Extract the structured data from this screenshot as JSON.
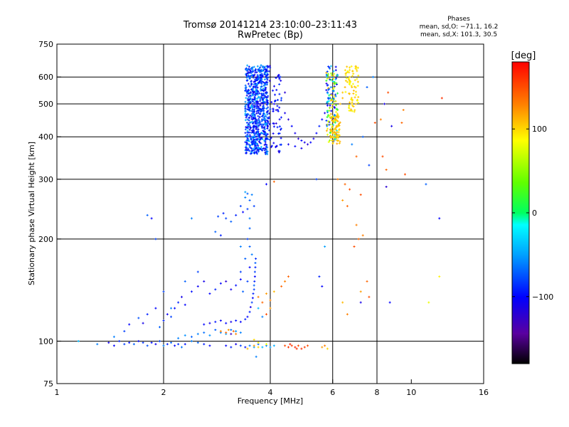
{
  "title_line1": "Tromsø 20141214 23:10:00–23:11:43",
  "title_line2": "RwPretec (Bp)",
  "phases": {
    "heading": "Phases",
    "o_line": "mean, sd,O: −71.1, 16.2",
    "x_line": "mean, sd,X: 101.3, 30.5"
  },
  "colorbar": {
    "label": "[deg]",
    "ticks": [
      {
        "v": 100,
        "label": "100"
      },
      {
        "v": 0,
        "label": "0"
      },
      {
        "v": -100,
        "label": "−100"
      }
    ],
    "range": [
      -180,
      180
    ]
  },
  "chart_data": {
    "type": "scatter",
    "title": "Tromsø 20141214 23:10:00–23:11:43",
    "subtitle": "RwPretec (Bp)",
    "xlabel": "Frequency [MHz]",
    "ylabel": "Stationary phase Virtual Height [km]",
    "xscale": "log",
    "yscale": "log",
    "xlim": [
      1,
      16
    ],
    "ylim": [
      75,
      750
    ],
    "xticks": [
      {
        "v": 1,
        "label": "1"
      },
      {
        "v": 2,
        "label": "2"
      },
      {
        "v": 4,
        "label": "4"
      },
      {
        "v": 6,
        "label": "6"
      },
      {
        "v": 8,
        "label": "8"
      },
      {
        "v": 10,
        "label": "10"
      },
      {
        "v": 16,
        "label": "16"
      }
    ],
    "yticks": [
      {
        "v": 75,
        "label": "75"
      },
      {
        "v": 100,
        "label": "100"
      },
      {
        "v": 200,
        "label": "200"
      },
      {
        "v": 300,
        "label": "300"
      },
      {
        "v": 400,
        "label": "400"
      },
      {
        "v": 500,
        "label": "500"
      },
      {
        "v": 600,
        "label": "600"
      },
      {
        "v": 750,
        "label": "750"
      }
    ],
    "xgrid": [
      2,
      4,
      6,
      8
    ],
    "ygrid": [
      100,
      200,
      300,
      400,
      500,
      600
    ],
    "color_variable": "phase [deg]",
    "points": [
      [
        1.15,
        100,
        -40
      ],
      [
        1.3,
        98,
        -60
      ],
      [
        1.4,
        99,
        -110
      ],
      [
        1.45,
        97,
        -100
      ],
      [
        1.5,
        100,
        -90
      ],
      [
        1.55,
        98,
        -80
      ],
      [
        1.6,
        99,
        -95
      ],
      [
        1.65,
        98,
        -70
      ],
      [
        1.7,
        100,
        -100
      ],
      [
        1.75,
        99,
        -85
      ],
      [
        1.8,
        97,
        -75
      ],
      [
        1.85,
        99,
        -95
      ],
      [
        1.9,
        98,
        -105
      ],
      [
        1.95,
        100,
        -80
      ],
      [
        2.0,
        97,
        -60
      ],
      [
        2.05,
        98,
        -90
      ],
      [
        2.1,
        99,
        -70
      ],
      [
        2.15,
        97,
        -100
      ],
      [
        2.2,
        98,
        -85
      ],
      [
        2.25,
        96,
        -65
      ],
      [
        2.3,
        98,
        -95
      ],
      [
        2.4,
        100,
        -60
      ],
      [
        2.5,
        99,
        -70
      ],
      [
        2.6,
        98,
        -90
      ],
      [
        2.7,
        97,
        -100
      ],
      [
        1.45,
        103,
        -60
      ],
      [
        1.55,
        107,
        -80
      ],
      [
        1.6,
        112,
        -100
      ],
      [
        1.7,
        117,
        -75
      ],
      [
        1.75,
        113,
        -110
      ],
      [
        1.8,
        120,
        -90
      ],
      [
        1.9,
        125,
        -100
      ],
      [
        1.95,
        110,
        -70
      ],
      [
        2.0,
        115,
        -90
      ],
      [
        2.05,
        120,
        -105
      ],
      [
        2.1,
        118,
        -80
      ],
      [
        2.15,
        125,
        -100
      ],
      [
        2.2,
        130,
        -90
      ],
      [
        2.25,
        135,
        -110
      ],
      [
        2.3,
        128,
        -100
      ],
      [
        2.4,
        140,
        -95
      ],
      [
        2.5,
        145,
        -105
      ],
      [
        2.6,
        150,
        -110
      ],
      [
        2.7,
        138,
        -100
      ],
      [
        2.8,
        142,
        -90
      ],
      [
        2.9,
        148,
        -100
      ],
      [
        3.0,
        150,
        -120
      ],
      [
        3.1,
        142,
        -110
      ],
      [
        3.2,
        146,
        -95
      ],
      [
        3.3,
        152,
        -100
      ],
      [
        2.2,
        102,
        -60
      ],
      [
        2.3,
        104,
        -55
      ],
      [
        2.4,
        103,
        -70
      ],
      [
        2.5,
        105,
        -60
      ],
      [
        2.6,
        106,
        -65
      ],
      [
        2.7,
        104,
        -55
      ],
      [
        2.8,
        108,
        -70
      ],
      [
        2.9,
        106,
        -60
      ],
      [
        3.0,
        105,
        -50
      ],
      [
        3.1,
        108,
        -65
      ],
      [
        3.2,
        107,
        -55
      ],
      [
        3.3,
        106,
        -60
      ],
      [
        2.6,
        112,
        -100
      ],
      [
        2.7,
        113,
        -110
      ],
      [
        2.8,
        114,
        -95
      ],
      [
        2.9,
        115,
        -105
      ],
      [
        3.0,
        113,
        -100
      ],
      [
        3.1,
        114,
        -110
      ],
      [
        3.2,
        115,
        -95
      ],
      [
        3.3,
        114,
        -100
      ],
      [
        3.4,
        116,
        -90
      ],
      [
        2.9,
        107,
        130
      ],
      [
        3.0,
        106,
        140
      ],
      [
        3.05,
        108,
        120
      ],
      [
        3.1,
        105,
        -130
      ],
      [
        3.15,
        107,
        140
      ],
      [
        3.2,
        105,
        130
      ],
      [
        3.0,
        97,
        -100
      ],
      [
        3.1,
        96,
        -90
      ],
      [
        3.2,
        98,
        -110
      ],
      [
        3.3,
        97,
        -80
      ],
      [
        3.4,
        96,
        -95
      ],
      [
        3.5,
        97,
        -60
      ],
      [
        3.6,
        96,
        -50
      ],
      [
        3.7,
        98,
        -70
      ],
      [
        3.8,
        96,
        -40
      ],
      [
        3.9,
        97,
        -60
      ],
      [
        4.0,
        96,
        -50
      ],
      [
        4.1,
        97,
        -45
      ],
      [
        3.45,
        95,
        110
      ],
      [
        3.6,
        97,
        120
      ],
      [
        3.7,
        96,
        100
      ],
      [
        3.65,
        90,
        -60
      ],
      [
        3.45,
        118,
        -100
      ],
      [
        3.5,
        122,
        -90
      ],
      [
        3.52,
        126,
        -110
      ],
      [
        3.55,
        130,
        -80
      ],
      [
        3.57,
        134,
        -100
      ],
      [
        3.58,
        138,
        -90
      ],
      [
        3.6,
        142,
        -80
      ],
      [
        3.6,
        146,
        -70
      ],
      [
        3.61,
        150,
        -90
      ],
      [
        3.62,
        155,
        -100
      ],
      [
        3.62,
        160,
        -80
      ],
      [
        3.63,
        165,
        -90
      ],
      [
        3.63,
        170,
        -70
      ],
      [
        3.64,
        175,
        -85
      ],
      [
        3.5,
        165,
        -100
      ],
      [
        3.45,
        150,
        -80
      ],
      [
        3.55,
        180,
        -60
      ],
      [
        3.5,
        190,
        -70
      ],
      [
        3.45,
        200,
        -80
      ],
      [
        3.5,
        215,
        -70
      ],
      [
        3.5,
        230,
        -60
      ],
      [
        3.45,
        245,
        -80
      ],
      [
        3.5,
        260,
        -70
      ],
      [
        3.4,
        265,
        -60
      ],
      [
        3.3,
        250,
        -80
      ],
      [
        3.35,
        240,
        -100
      ],
      [
        3.2,
        235,
        -90
      ],
      [
        3.1,
        225,
        -70
      ],
      [
        3.0,
        230,
        -80
      ],
      [
        2.95,
        238,
        -90
      ],
      [
        2.85,
        233,
        -80
      ],
      [
        3.55,
        270,
        -60
      ],
      [
        3.45,
        272,
        -70
      ],
      [
        3.4,
        275,
        -50
      ],
      [
        3.6,
        250,
        -80
      ],
      [
        3.3,
        190,
        -60
      ],
      [
        3.4,
        175,
        -70
      ],
      [
        3.3,
        160,
        -80
      ],
      [
        3.35,
        140,
        -70
      ],
      [
        1.8,
        235,
        -70
      ],
      [
        1.85,
        230,
        -100
      ],
      [
        1.9,
        200,
        -80
      ],
      [
        2.4,
        230,
        -60
      ],
      [
        2.8,
        210,
        -70
      ],
      [
        2.9,
        205,
        -90
      ],
      [
        2.0,
        140,
        -80
      ],
      [
        2.1,
        125,
        -60
      ],
      [
        2.3,
        150,
        -70
      ],
      [
        2.5,
        160,
        -80
      ],
      [
        3.7,
        135,
        130
      ],
      [
        3.8,
        130,
        140
      ],
      [
        3.9,
        138,
        120
      ],
      [
        4.0,
        132,
        130
      ],
      [
        4.1,
        140,
        110
      ],
      [
        4.3,
        145,
        140
      ],
      [
        4.4,
        150,
        130
      ],
      [
        4.5,
        155,
        140
      ],
      [
        4.0,
        125,
        120
      ],
      [
        3.9,
        120,
        150
      ],
      [
        3.8,
        118,
        -60
      ],
      [
        3.7,
        125,
        -40
      ],
      [
        4.4,
        97,
        150
      ],
      [
        4.5,
        96,
        160
      ],
      [
        4.6,
        97,
        155
      ],
      [
        4.7,
        96,
        165
      ],
      [
        4.8,
        97,
        150
      ],
      [
        4.9,
        95,
        160
      ],
      [
        5.0,
        96,
        155
      ],
      [
        5.1,
        97,
        150
      ],
      [
        4.55,
        98,
        165
      ],
      [
        4.75,
        95,
        160
      ],
      [
        5.6,
        96,
        120
      ],
      [
        5.7,
        97,
        130
      ],
      [
        5.8,
        95,
        100
      ],
      [
        3.9,
        98,
        80
      ],
      [
        3.7,
        99,
        90
      ],
      [
        3.6,
        101,
        100
      ],
      [
        4.1,
        500,
        -110
      ],
      [
        4.2,
        480,
        -100
      ],
      [
        4.4,
        470,
        -110
      ],
      [
        4.5,
        450,
        -120
      ],
      [
        4.6,
        430,
        -100
      ],
      [
        4.7,
        410,
        -110
      ],
      [
        4.8,
        395,
        -120
      ],
      [
        4.9,
        390,
        -100
      ],
      [
        5.0,
        385,
        -110
      ],
      [
        5.1,
        380,
        -120
      ],
      [
        5.2,
        385,
        -100
      ],
      [
        5.3,
        395,
        -110
      ],
      [
        5.4,
        410,
        -100
      ],
      [
        5.5,
        430,
        -90
      ],
      [
        5.6,
        450,
        -100
      ],
      [
        5.7,
        470,
        -110
      ],
      [
        5.8,
        495,
        -100
      ],
      [
        5.9,
        520,
        -90
      ],
      [
        4.5,
        380,
        -110
      ],
      [
        4.7,
        375,
        -100
      ],
      [
        4.9,
        370,
        -110
      ],
      [
        4.3,
        520,
        -80
      ],
      [
        4.4,
        540,
        -120
      ],
      [
        6.0,
        400,
        100
      ],
      [
        6.05,
        420,
        105
      ],
      [
        6.1,
        440,
        95
      ],
      [
        6.0,
        460,
        110
      ],
      [
        6.05,
        450,
        100
      ],
      [
        5.95,
        420,
        105
      ],
      [
        6.2,
        480,
        100
      ],
      [
        6.3,
        500,
        110
      ],
      [
        6.4,
        540,
        105
      ],
      [
        6.5,
        560,
        110
      ],
      [
        6.6,
        580,
        100
      ],
      [
        6.7,
        600,
        95
      ],
      [
        6.8,
        560,
        110
      ],
      [
        6.7,
        640,
        100
      ],
      [
        6.6,
        620,
        105
      ],
      [
        6.2,
        300,
        130
      ],
      [
        6.5,
        290,
        140
      ],
      [
        6.7,
        280,
        150
      ],
      [
        6.4,
        260,
        120
      ],
      [
        6.6,
        250,
        140
      ],
      [
        7.2,
        270,
        150
      ],
      [
        7.0,
        220,
        130
      ],
      [
        7.1,
        200,
        140
      ],
      [
        6.9,
        190,
        150
      ],
      [
        7.3,
        205,
        130
      ],
      [
        7.5,
        150,
        140
      ],
      [
        7.2,
        140,
        120
      ],
      [
        7.6,
        135,
        150
      ],
      [
        6.4,
        130,
        110
      ],
      [
        6.6,
        120,
        130
      ],
      [
        7.0,
        350,
        140
      ],
      [
        6.8,
        380,
        -60
      ],
      [
        7.3,
        400,
        -70
      ],
      [
        7.6,
        330,
        -80
      ],
      [
        8.3,
        350,
        150
      ],
      [
        8.5,
        320,
        140
      ],
      [
        9.6,
        310,
        150
      ],
      [
        9.4,
        440,
        140
      ],
      [
        9.5,
        480,
        130
      ],
      [
        8.8,
        430,
        -110
      ],
      [
        8.4,
        500,
        -110
      ],
      [
        8.6,
        540,
        150
      ],
      [
        12.2,
        520,
        160
      ],
      [
        12.0,
        230,
        -100
      ],
      [
        11.0,
        290,
        -70
      ],
      [
        11.2,
        130,
        80
      ],
      [
        8.2,
        450,
        130
      ],
      [
        7.9,
        440,
        150
      ],
      [
        5.4,
        300,
        -80
      ],
      [
        5.7,
        190,
        -50
      ],
      [
        5.5,
        155,
        -90
      ],
      [
        5.6,
        145,
        -100
      ],
      [
        8.5,
        285,
        -120
      ],
      [
        8.7,
        130,
        -100
      ],
      [
        7.2,
        130,
        -110
      ],
      [
        3.9,
        290,
        -100
      ],
      [
        4.1,
        295,
        140
      ],
      [
        12.0,
        155,
        90
      ],
      [
        7.8,
        600,
        -60
      ],
      [
        7.5,
        560,
        -70
      ],
      [
        6.8,
        500,
        100
      ],
      [
        6.4,
        520,
        110
      ]
    ],
    "clusters": [
      {
        "x": [
          3.4,
          3.95
        ],
        "y": [
          355,
          650
        ],
        "phase": [
          -110,
          -40
        ],
        "n": 650
      },
      {
        "x": [
          3.4,
          4.3
        ],
        "y": [
          360,
          650
        ],
        "phase": [
          -120,
          -80
        ],
        "n": 180
      },
      {
        "x": [
          5.75,
          6.2
        ],
        "y": [
          380,
          650
        ],
        "phase": [
          -120,
          120
        ],
        "n": 160
      },
      {
        "x": [
          6.5,
          7.1
        ],
        "y": [
          470,
          650
        ],
        "phase": [
          80,
          110
        ],
        "n": 70
      },
      {
        "x": [
          5.9,
          6.3
        ],
        "y": [
          380,
          470
        ],
        "phase": [
          95,
          115
        ],
        "n": 70
      }
    ]
  }
}
